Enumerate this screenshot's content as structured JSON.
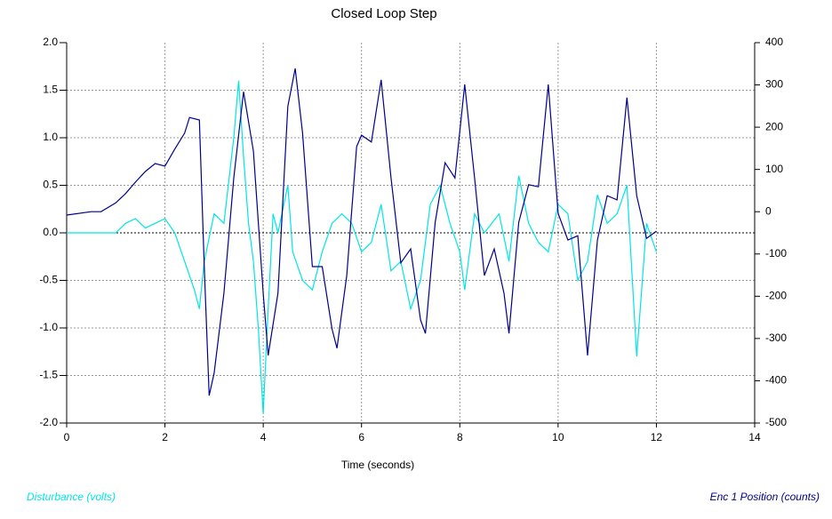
{
  "chart_data": {
    "type": "line",
    "title": "Closed Loop Step",
    "x_label": "Time (seconds)",
    "xlim": [
      0,
      14
    ],
    "xticks": [
      0,
      2,
      4,
      6,
      8,
      10,
      12,
      14
    ],
    "ylim": [
      -2,
      2
    ],
    "yticks": [
      {
        "value": -2,
        "label": "-2.0"
      },
      -1.5,
      {
        "value": -1,
        "label": "-1.0"
      },
      -0.5,
      {
        "value": 0,
        "label": "0.0"
      },
      0.5,
      {
        "value": 1,
        "label": "1.0"
      },
      1.5,
      {
        "value": 2,
        "label": "2.0"
      }
    ],
    "y2lim": [
      -500,
      400
    ],
    "y2ticks": [
      -500,
      -400,
      -300,
      -200,
      -100,
      0,
      100,
      200,
      300,
      400
    ],
    "grid": true,
    "series": [
      {
        "name": "Disturbance (volts)",
        "color": "#00e5e5",
        "axis": "y",
        "x": [
          0,
          0.5,
          1.0,
          1.2,
          1.4,
          1.6,
          1.8,
          2.0,
          2.2,
          2.4,
          2.6,
          2.7,
          2.8,
          3.0,
          3.2,
          3.4,
          3.5,
          3.6,
          3.7,
          3.8,
          3.9,
          4.0,
          4.1,
          4.2,
          4.3,
          4.5,
          4.6,
          4.8,
          5.0,
          5.2,
          5.4,
          5.6,
          5.8,
          6.0,
          6.2,
          6.4,
          6.6,
          6.8,
          7.0,
          7.2,
          7.4,
          7.6,
          7.8,
          8.0,
          8.1,
          8.3,
          8.5,
          8.8,
          9.0,
          9.2,
          9.4,
          9.6,
          9.8,
          10.0,
          10.2,
          10.4,
          10.6,
          10.8,
          11.0,
          11.2,
          11.4,
          11.6,
          11.8,
          12.0
        ],
        "values": [
          0,
          0,
          0,
          0.1,
          0.15,
          0.05,
          0.1,
          0.15,
          0,
          -0.3,
          -0.6,
          -0.8,
          -0.3,
          0.2,
          0.1,
          1.0,
          1.6,
          0.8,
          0.1,
          -0.3,
          -1.0,
          -1.9,
          -0.8,
          0.2,
          0,
          0.5,
          -0.2,
          -0.5,
          -0.6,
          -0.2,
          0.1,
          0.2,
          0.1,
          -0.2,
          -0.1,
          0.3,
          -0.4,
          -0.3,
          -0.8,
          -0.5,
          0.3,
          0.5,
          0.1,
          -0.2,
          -0.6,
          0.2,
          0,
          0.2,
          -0.3,
          0.6,
          0.1,
          -0.1,
          -0.2,
          0.3,
          0.2,
          -0.5,
          -0.3,
          0.4,
          0.1,
          0.2,
          0.5,
          -1.3,
          0.1,
          -0.2
        ]
      },
      {
        "name": "Enc 1 Position (counts)",
        "color": "#00008b",
        "axis": "y2",
        "x": [
          0,
          0.5,
          0.7,
          1.0,
          1.2,
          1.4,
          1.6,
          1.8,
          2.0,
          2.2,
          2.4,
          2.5,
          2.7,
          2.8,
          2.9,
          3.0,
          3.2,
          3.4,
          3.6,
          3.8,
          4.0,
          4.1,
          4.3,
          4.5,
          4.65,
          4.8,
          5.0,
          5.2,
          5.4,
          5.5,
          5.7,
          5.9,
          6.0,
          6.2,
          6.4,
          6.6,
          6.8,
          7.0,
          7.2,
          7.3,
          7.5,
          7.7,
          7.9,
          8.1,
          8.3,
          8.5,
          8.7,
          8.9,
          9.0,
          9.2,
          9.4,
          9.6,
          9.8,
          10.0,
          10.2,
          10.4,
          10.6,
          10.8,
          11.0,
          11.2,
          11.4,
          11.6,
          11.8,
          12.0
        ],
        "values": [
          -8,
          0,
          0,
          21,
          43,
          70,
          95,
          114,
          108,
          148,
          186,
          223,
          217,
          -130,
          -435,
          -382,
          -193,
          80,
          284,
          143,
          -193,
          -340,
          -193,
          249,
          339,
          186,
          -130,
          -130,
          -277,
          -323,
          -151,
          154,
          181,
          165,
          312,
          80,
          -121,
          -88,
          -256,
          -288,
          -25,
          116,
          80,
          301,
          80,
          -151,
          -88,
          -193,
          -288,
          -25,
          64,
          59,
          301,
          -4,
          -67,
          -57,
          -340,
          -67,
          38,
          28,
          270,
          38,
          -63,
          -46
        ]
      }
    ]
  }
}
